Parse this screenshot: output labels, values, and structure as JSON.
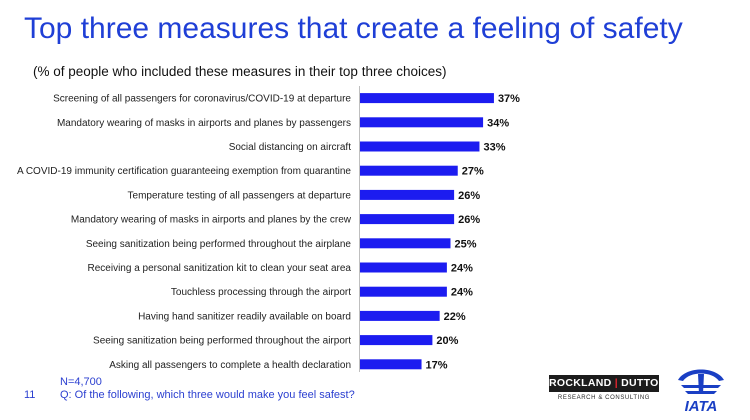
{
  "title": "Top three measures that create a feeling of safety",
  "subtitle": "(% of people who included these measures in their top three choices)",
  "footer": {
    "sample": "N=4,700",
    "question": "Q: Of the following, which three would make you feel safest?",
    "page_number": "11"
  },
  "logos": {
    "rockland_word1": "ROCKLAND",
    "rockland_word2": "DUTTON",
    "rockland_sub": "RESEARCH & CONSULTING",
    "iata": "IATA"
  },
  "colors": {
    "bar": "#1c1cf0",
    "title": "#1f3fd6",
    "footer": "#2b3fd0"
  },
  "chart_data": {
    "type": "bar",
    "orientation": "horizontal",
    "title": "Top three measures that create a feeling of safety",
    "subtitle": "(% of people who included these measures in their top three choices)",
    "xlabel": "",
    "ylabel": "",
    "unit": "%",
    "grid": false,
    "legend": "none",
    "categories": [
      "Screening of all passengers for coronavirus/COVID-19 at departure",
      "Mandatory wearing of masks in airports and planes by passengers",
      "Social distancing on aircraft",
      "A COVID-19 immunity certification guaranteeing exemption from quarantine",
      "Temperature testing of all passengers at departure",
      "Mandatory wearing of masks in airports and planes by the crew",
      "Seeing sanitization being performed throughout the airplane",
      "Receiving a personal sanitization kit to clean your seat area",
      "Touchless processing through the airport",
      "Having hand sanitizer readily available on board",
      "Seeing sanitization being performed throughout the airport",
      "Asking all passengers to complete a health declaration"
    ],
    "values": [
      37,
      34,
      33,
      27,
      26,
      26,
      25,
      24,
      24,
      22,
      20,
      17
    ],
    "data_labels": [
      "37%",
      "34%",
      "33%",
      "27%",
      "26%",
      "26%",
      "25%",
      "24%",
      "24%",
      "22%",
      "20%",
      "17%"
    ]
  }
}
